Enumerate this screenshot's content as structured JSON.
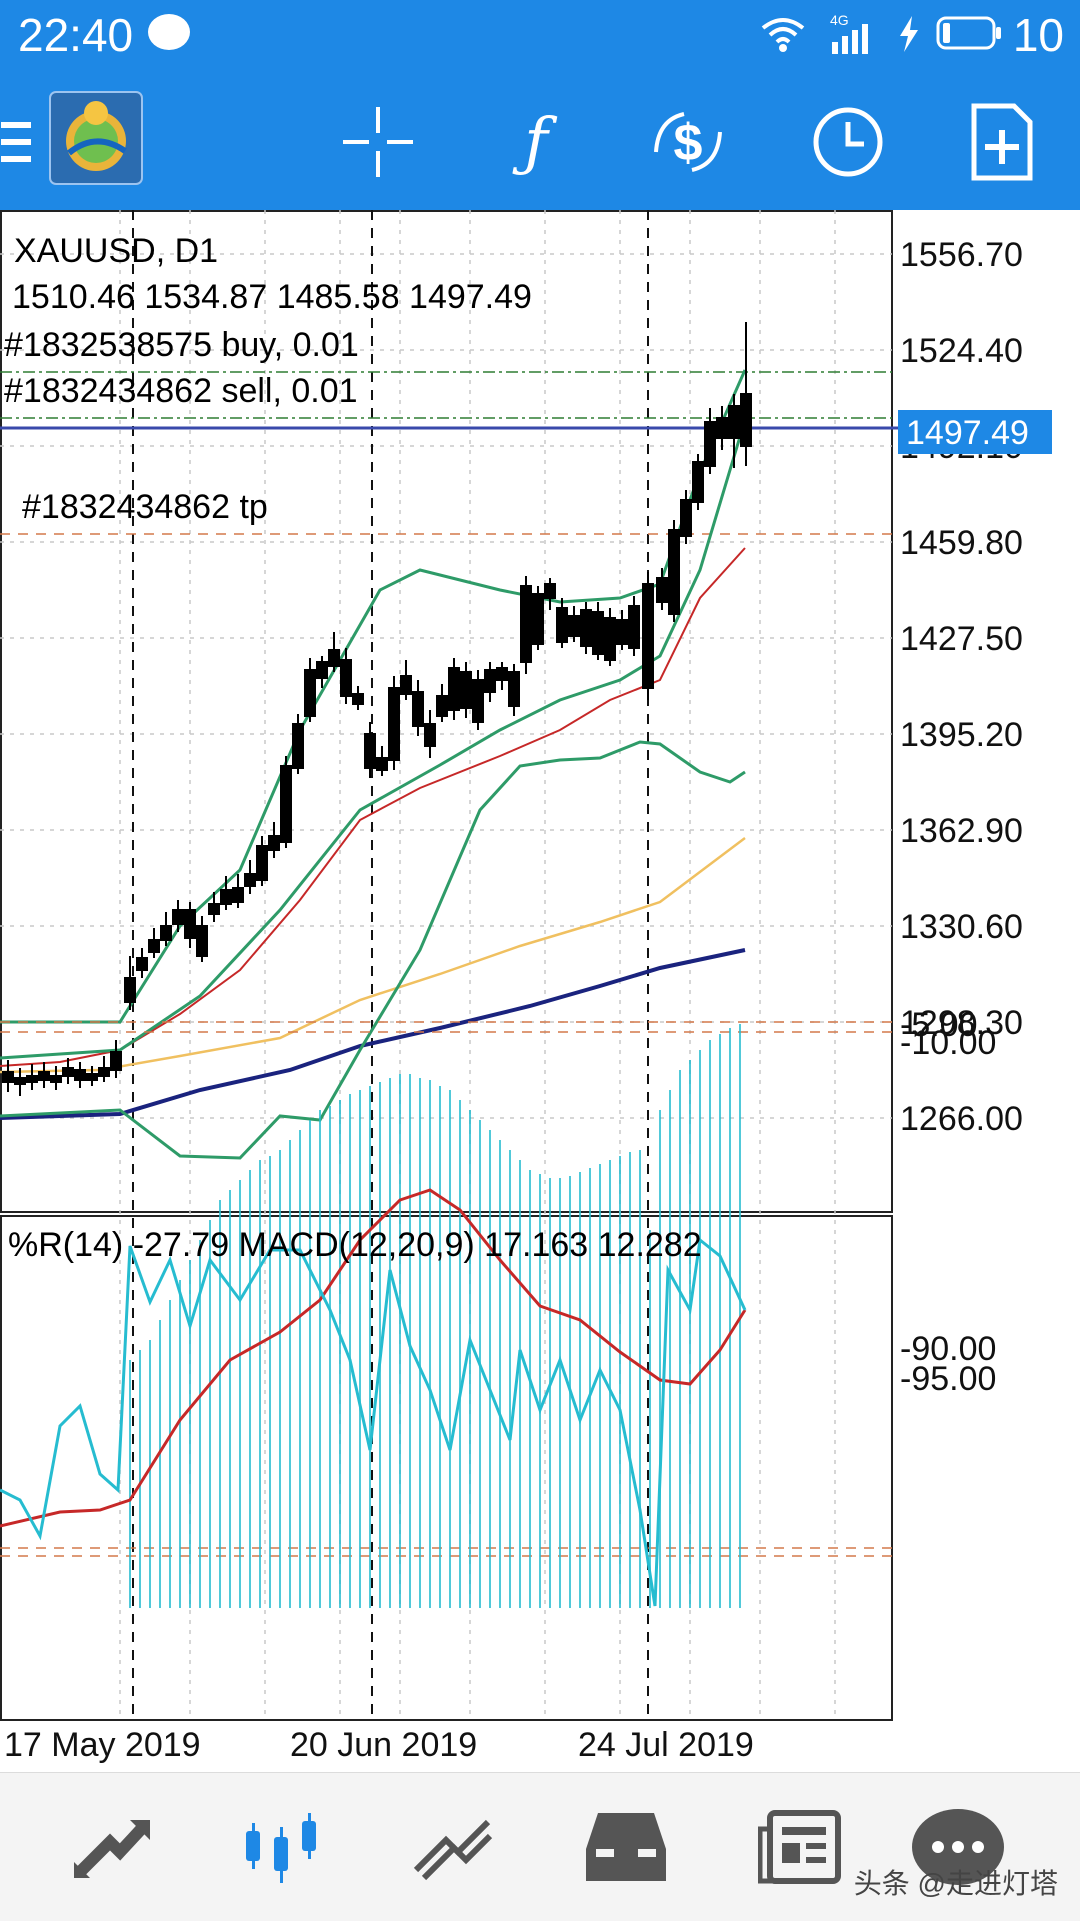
{
  "status_bar": {
    "time": "22:40",
    "network": "4G",
    "battery": "10"
  },
  "app_bar": {
    "icons": [
      "menu-icon",
      "mt4-logo",
      "crosshair-icon",
      "indicators-icon",
      "symbols-icon",
      "period-icon",
      "new-order-icon"
    ]
  },
  "chart": {
    "symbol_tf": "XAUUSD, D1",
    "ohlc": "1510.46 1534.87 1485.58 1497.49",
    "orders": {
      "buy": "#1832538575 buy, 0.01",
      "sell": "#1832434862 sell, 0.01",
      "tp": "#1832434862 tp"
    },
    "current_price": "1497.49",
    "price_labels": [
      "1556.70",
      "1524.40",
      "1492.10",
      "1459.80",
      "1427.50",
      "1395.20",
      "1362.90",
      "1330.60",
      "1298.30",
      "1266.00"
    ],
    "date_labels": [
      "17 May 2019",
      "20 Jun 2019",
      "24 Jul 2019"
    ],
    "sub_title": "%R(14) -27.79 MACD(12,20,9) 17.163 12.282",
    "sub_labels": [
      "-5.00",
      "-10.00",
      "-90.00",
      "-95.00"
    ],
    "colors": {
      "bb": "#2e9b68",
      "ma_red": "#c62828",
      "ma_tan": "#f0c060",
      "ma_navy": "#1a237e",
      "wpr": "#26bcd0",
      "macd_signal": "#c62828",
      "buy_line": "#2e7d32",
      "sell_line": "#2e7d32",
      "tp_line": "#d4794a",
      "price_line": "#3949ab",
      "price_badge": "#1e88e5"
    }
  },
  "bottom_nav": {
    "items": [
      "quotes-icon",
      "chart-icon",
      "trade-icon",
      "history-icon",
      "news-icon",
      "more-icon"
    ],
    "watermark": "头条 @走进灯塔"
  }
}
